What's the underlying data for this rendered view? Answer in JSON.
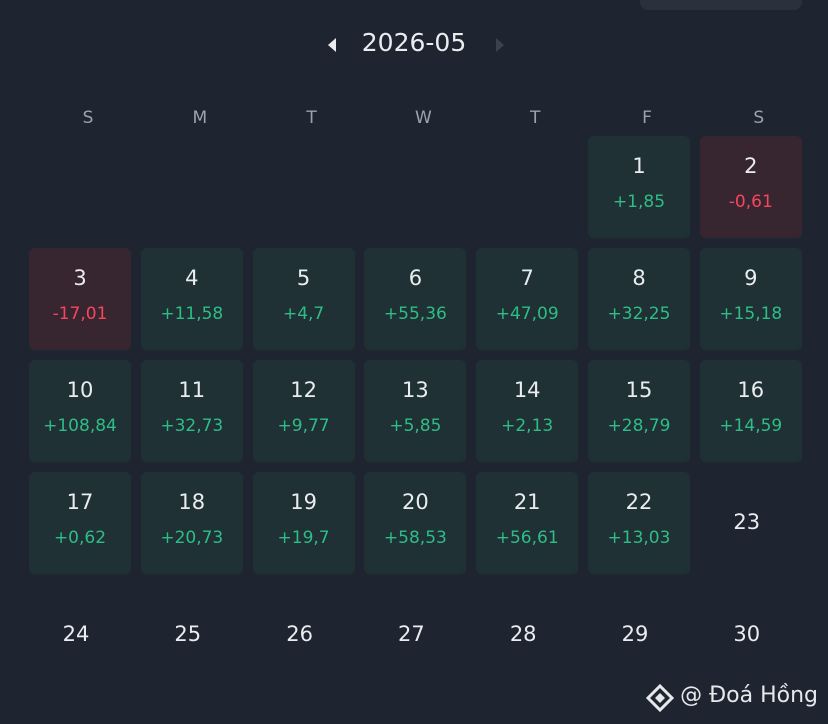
{
  "header": {
    "month": "2026-05"
  },
  "weekdays": [
    "S",
    "M",
    "T",
    "W",
    "T",
    "F",
    "S"
  ],
  "days": [
    {
      "day": "1",
      "pnl": "+1,85"
    },
    {
      "day": "2",
      "pnl": "-0,61"
    },
    {
      "day": "3",
      "pnl": "-17,01"
    },
    {
      "day": "4",
      "pnl": "+11,58"
    },
    {
      "day": "5",
      "pnl": "+4,7"
    },
    {
      "day": "6",
      "pnl": "+55,36"
    },
    {
      "day": "7",
      "pnl": "+47,09"
    },
    {
      "day": "8",
      "pnl": "+32,25"
    },
    {
      "day": "9",
      "pnl": "+15,18"
    },
    {
      "day": "10",
      "pnl": "+108,84"
    },
    {
      "day": "11",
      "pnl": "+32,73"
    },
    {
      "day": "12",
      "pnl": "+9,77"
    },
    {
      "day": "13",
      "pnl": "+5,85"
    },
    {
      "day": "14",
      "pnl": "+2,13"
    },
    {
      "day": "15",
      "pnl": "+28,79"
    },
    {
      "day": "16",
      "pnl": "+14,59"
    },
    {
      "day": "17",
      "pnl": "+0,62"
    },
    {
      "day": "18",
      "pnl": "+20,73"
    },
    {
      "day": "19",
      "pnl": "+19,7"
    },
    {
      "day": "20",
      "pnl": "+58,53"
    },
    {
      "day": "21",
      "pnl": "+56,61"
    },
    {
      "day": "22",
      "pnl": "+13,03"
    },
    {
      "day": "23"
    },
    {
      "day": "24"
    },
    {
      "day": "25"
    },
    {
      "day": "26"
    },
    {
      "day": "27"
    },
    {
      "day": "28"
    },
    {
      "day": "29"
    },
    {
      "day": "30"
    }
  ],
  "watermark": "@ Đoá Hồng"
}
